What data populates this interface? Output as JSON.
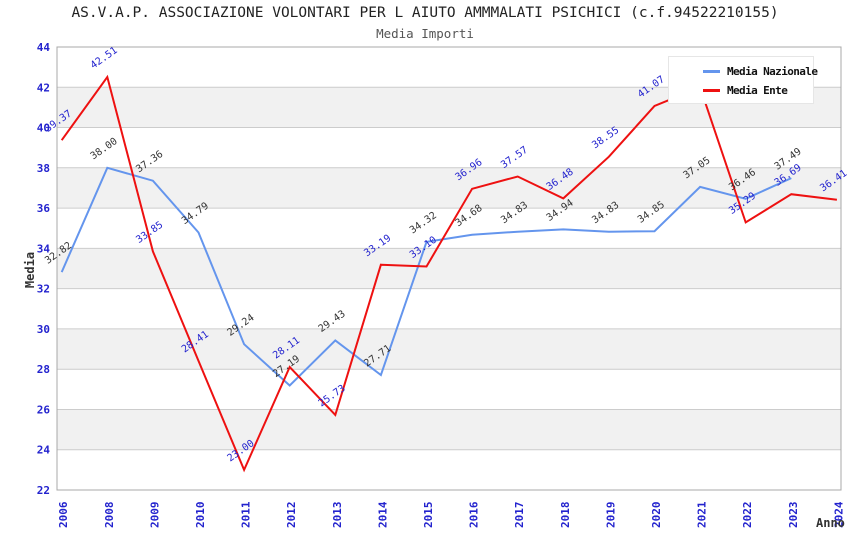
{
  "title": "AS.V.A.P. ASSOCIAZIONE VOLONTARI PER L AIUTO AMMMALATI PSICHICI (c.f.94522210155)",
  "subtitle": "Media Importi",
  "axes": {
    "y_title": "Media",
    "x_title": "Anno"
  },
  "legend": {
    "position": "top-right",
    "items": [
      {
        "label": "Media Nazionale",
        "color": "#6495ED"
      },
      {
        "label": "Media Ente",
        "color": "#EE1111"
      }
    ]
  },
  "chart_data": {
    "type": "line",
    "title": "AS.V.A.P. ASSOCIAZIONE VOLONTARI PER L AIUTO AMMMALATI PSICHICI (c.f.94522210155)",
    "subtitle": "Media Importi",
    "xlabel": "Anno",
    "ylabel": "Media",
    "ylim": [
      22,
      44
    ],
    "ytick_step": 2,
    "grid": "horizontal",
    "alternating_bands": true,
    "categories": [
      "2006",
      "2008",
      "2009",
      "2010",
      "2011",
      "2012",
      "2013",
      "2014",
      "2015",
      "2016",
      "2017",
      "2018",
      "2019",
      "2020",
      "2021",
      "2022",
      "2023",
      "2024"
    ],
    "series": [
      {
        "name": "Media Nazionale",
        "color": "#6495ED",
        "label_color": "#333333",
        "values": [
          32.82,
          38.0,
          37.36,
          34.79,
          29.24,
          27.19,
          29.43,
          27.71,
          34.32,
          34.68,
          34.83,
          34.94,
          34.83,
          34.85,
          37.05,
          36.46,
          37.49,
          null
        ],
        "labels": [
          "32.82",
          "38.00",
          "37.36",
          "34.79",
          "29.24",
          "27.19",
          "29.43",
          "27.71",
          "34.32",
          "34.68",
          "34.83",
          "34.94",
          "34.83",
          "34.85",
          "37.05",
          "36.46",
          "37.49",
          null
        ]
      },
      {
        "name": "Media Ente",
        "color": "#EE1111",
        "label_color": "#2323CE",
        "values": [
          39.37,
          42.51,
          33.85,
          28.41,
          23.0,
          28.11,
          25.73,
          33.19,
          33.1,
          36.96,
          37.57,
          36.48,
          38.55,
          41.07,
          42.0,
          35.29,
          36.69,
          36.41
        ],
        "labels": [
          "39.37",
          "42.51",
          "33.85",
          "28.41",
          "23.00",
          "28.11",
          "25.73",
          "33.19",
          "33.10",
          "36.96",
          "37.57",
          "36.48",
          "38.55",
          "41.07",
          null,
          "35.29",
          "36.69",
          "36.41"
        ]
      }
    ],
    "style": {
      "tick_label_color": "#2323CE",
      "grid_color": "#CCCCCC",
      "band_color": "#F1F1F1",
      "border_color": "#A8A8A8"
    }
  }
}
